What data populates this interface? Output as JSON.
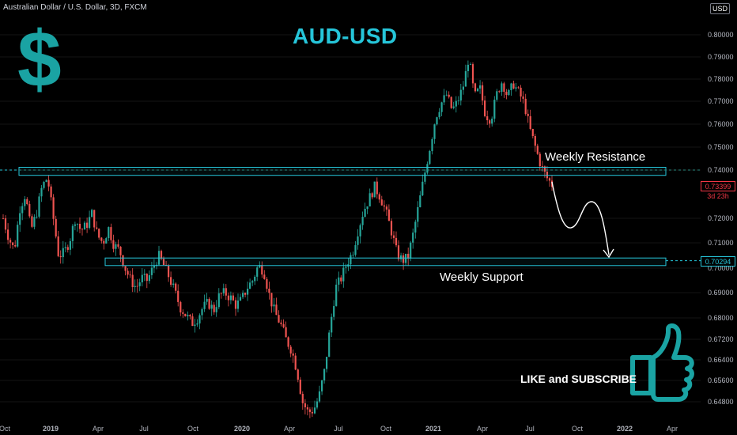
{
  "header": {
    "symbol_info": "Australian Dollar / U.S. Dollar, 3D, FXCM",
    "currency_button": "USD"
  },
  "annotations": {
    "title": "AUD-USD",
    "dollar_sign": "$",
    "resistance_label": "Weekly Resistance",
    "support_label": "Weekly Support",
    "like_label": "LIKE and SUBSCRIBE"
  },
  "price_tags": {
    "last_price": "0.73399",
    "countdown": "3d 23h",
    "support_price": "0.70294"
  },
  "colors": {
    "up": "#26a69a",
    "down": "#ef5350",
    "zone": "#26c6da",
    "accent": "#1aa3a3",
    "background": "#000000"
  },
  "chart_data": {
    "type": "candlestick",
    "title": "AUD-USD",
    "xlabel": "",
    "ylabel": "",
    "ylim": [
      0.6435,
      0.8045
    ],
    "x_ticks": [
      "Oct",
      "2019",
      "Apr",
      "Jul",
      "Oct",
      "2020",
      "Apr",
      "Jul",
      "Oct",
      "2021",
      "Apr",
      "Jul",
      "Oct",
      "2022",
      "Apr"
    ],
    "y_ticks": [
      "0.80000",
      "0.79000",
      "0.78000",
      "0.77000",
      "0.76000",
      "0.75000",
      "0.74000",
      "0.72000",
      "0.71000",
      "0.70000",
      "0.69000",
      "0.68000",
      "0.67200",
      "0.66400",
      "0.65600",
      "0.64800"
    ],
    "path_points": [
      0.72,
      0.712,
      0.707,
      0.724,
      0.73,
      0.715,
      0.722,
      0.733,
      0.737,
      0.721,
      0.705,
      0.706,
      0.711,
      0.72,
      0.715,
      0.717,
      0.722,
      0.713,
      0.71,
      0.716,
      0.709,
      0.707,
      0.7,
      0.695,
      0.692,
      0.696,
      0.695,
      0.7,
      0.705,
      0.701,
      0.696,
      0.69,
      0.684,
      0.681,
      0.678,
      0.68,
      0.684,
      0.686,
      0.683,
      0.689,
      0.69,
      0.688,
      0.685,
      0.687,
      0.692,
      0.695,
      0.701,
      0.699,
      0.689,
      0.682,
      0.678,
      0.672,
      0.668,
      0.66,
      0.648,
      0.644,
      0.645,
      0.65,
      0.66,
      0.677,
      0.692,
      0.696,
      0.702,
      0.706,
      0.715,
      0.723,
      0.728,
      0.733,
      0.729,
      0.723,
      0.715,
      0.706,
      0.703,
      0.704,
      0.714,
      0.726,
      0.738,
      0.75,
      0.763,
      0.769,
      0.773,
      0.766,
      0.77,
      0.777,
      0.79,
      0.772,
      0.776,
      0.764,
      0.762,
      0.773,
      0.779,
      0.772,
      0.778,
      0.774,
      0.769,
      0.758,
      0.75,
      0.742,
      0.737,
      0.734
    ],
    "resistance_zone": [
      0.7378,
      0.7412
    ],
    "support_zone": [
      0.701,
      0.704
    ],
    "last_price": 0.73399,
    "support_price": 0.70294,
    "projection": "down to the Weekly Support zone"
  }
}
